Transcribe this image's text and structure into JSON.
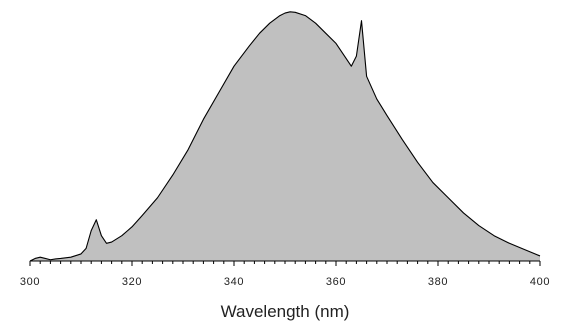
{
  "chart_data": {
    "type": "area",
    "title": "",
    "xlabel": "Wavelength (nm)",
    "ylabel": "",
    "xlim": [
      300,
      400
    ],
    "ylim": [
      0,
      1
    ],
    "x_ticks": [
      300,
      320,
      340,
      360,
      380,
      400
    ],
    "minor_tick_step": 2,
    "grid": false,
    "legend": "none",
    "fill_color": "#c0c0c0",
    "line_color": "#000000",
    "series": [
      {
        "x": [
          300,
          301,
          302,
          303,
          304,
          305,
          306,
          308,
          310,
          311,
          312,
          313,
          314,
          315,
          316,
          318,
          320,
          322,
          325,
          328,
          331,
          334,
          337,
          340,
          343,
          345,
          347,
          349,
          350,
          351,
          352,
          354,
          356,
          358,
          360,
          362,
          363,
          364,
          365,
          366,
          368,
          370,
          373,
          376,
          379,
          382,
          385,
          388,
          391,
          394,
          397,
          400
        ],
        "y": [
          0.0,
          0.01,
          0.015,
          0.01,
          0.005,
          0.008,
          0.01,
          0.015,
          0.028,
          0.05,
          0.12,
          0.163,
          0.1,
          0.07,
          0.075,
          0.1,
          0.135,
          0.18,
          0.25,
          0.34,
          0.44,
          0.56,
          0.665,
          0.77,
          0.85,
          0.9,
          0.94,
          0.97,
          0.98,
          0.985,
          0.983,
          0.97,
          0.94,
          0.9,
          0.86,
          0.8,
          0.77,
          0.81,
          0.95,
          0.73,
          0.64,
          0.575,
          0.48,
          0.39,
          0.31,
          0.25,
          0.19,
          0.14,
          0.1,
          0.07,
          0.045,
          0.02
        ]
      }
    ]
  }
}
